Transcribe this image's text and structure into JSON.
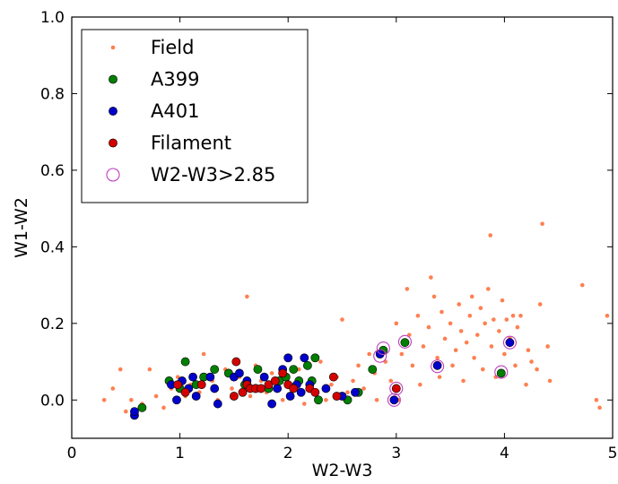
{
  "chart_data": {
    "type": "scatter",
    "xlabel": "W2-W3",
    "ylabel": "W1-W2",
    "xlim": [
      0,
      5
    ],
    "ylim": [
      -0.1,
      1.0
    ],
    "xticks": [
      "0",
      "1",
      "2",
      "3",
      "4",
      "5"
    ],
    "yticks": [
      "0.0",
      "0.2",
      "0.4",
      "0.6",
      "0.8",
      "1.0"
    ],
    "grid": false,
    "legend_position": "top-left",
    "series": [
      {
        "name": "Field",
        "marker": "small-dot",
        "color": "#FF7F50",
        "points": [
          [
            0.3,
            0.0
          ],
          [
            0.38,
            0.03
          ],
          [
            0.45,
            0.08
          ],
          [
            0.5,
            -0.03
          ],
          [
            0.55,
            0.0
          ],
          [
            0.65,
            -0.01
          ],
          [
            0.72,
            0.08
          ],
          [
            0.78,
            0.01
          ],
          [
            0.85,
            -0.02
          ],
          [
            0.92,
            0.03
          ],
          [
            0.98,
            0.06
          ],
          [
            1.05,
            0.01
          ],
          [
            1.1,
            0.04
          ],
          [
            1.18,
            0.02
          ],
          [
            1.22,
            0.12
          ],
          [
            1.3,
            0.05
          ],
          [
            1.35,
            0.0
          ],
          [
            1.42,
            0.08
          ],
          [
            1.48,
            0.03
          ],
          [
            1.55,
            0.06
          ],
          [
            1.62,
            0.27
          ],
          [
            1.65,
            0.01
          ],
          [
            1.7,
            0.09
          ],
          [
            1.75,
            0.05
          ],
          [
            1.8,
            0.02
          ],
          [
            1.85,
            0.07
          ],
          [
            1.9,
            0.04
          ],
          [
            1.95,
            0.0
          ],
          [
            2.0,
            0.06
          ],
          [
            2.05,
            0.03
          ],
          [
            2.1,
            0.08
          ],
          [
            2.15,
            -0.01
          ],
          [
            2.2,
            0.05
          ],
          [
            2.25,
            0.02
          ],
          [
            2.3,
            0.1
          ],
          [
            2.35,
            0.0
          ],
          [
            2.4,
            0.04
          ],
          [
            2.45,
            0.06
          ],
          [
            2.5,
            0.21
          ],
          [
            2.55,
            0.02
          ],
          [
            2.6,
            0.05
          ],
          [
            2.65,
            0.09
          ],
          [
            2.7,
            0.03
          ],
          [
            2.75,
            0.12
          ],
          [
            2.8,
            0.07
          ],
          [
            2.82,
            0.0
          ],
          [
            2.9,
            0.1
          ],
          [
            2.95,
            0.05
          ],
          [
            3.0,
            0.2
          ],
          [
            3.02,
            0.0
          ],
          [
            3.05,
            0.12
          ],
          [
            3.1,
            0.29
          ],
          [
            3.12,
            0.17
          ],
          [
            3.15,
            0.09
          ],
          [
            3.2,
            0.22
          ],
          [
            3.22,
            0.04
          ],
          [
            3.25,
            0.14
          ],
          [
            3.3,
            0.19
          ],
          [
            3.32,
            0.32
          ],
          [
            3.35,
            0.27
          ],
          [
            3.38,
            0.11
          ],
          [
            3.4,
            0.06
          ],
          [
            3.42,
            0.23
          ],
          [
            3.45,
            0.16
          ],
          [
            3.5,
            0.2
          ],
          [
            3.52,
            0.09
          ],
          [
            3.55,
            0.13
          ],
          [
            3.58,
            0.25
          ],
          [
            3.6,
            0.18
          ],
          [
            3.62,
            0.05
          ],
          [
            3.65,
            0.15
          ],
          [
            3.68,
            0.22
          ],
          [
            3.7,
            0.27
          ],
          [
            3.72,
            0.11
          ],
          [
            3.75,
            0.17
          ],
          [
            3.78,
            0.24
          ],
          [
            3.8,
            0.08
          ],
          [
            3.82,
            0.2
          ],
          [
            3.85,
            0.29
          ],
          [
            3.87,
            0.43
          ],
          [
            3.88,
            0.14
          ],
          [
            3.9,
            0.21
          ],
          [
            3.92,
            0.06
          ],
          [
            3.95,
            0.18
          ],
          [
            3.98,
            0.26
          ],
          [
            4.0,
            0.12
          ],
          [
            4.02,
            0.21
          ],
          [
            4.05,
            0.16
          ],
          [
            4.08,
            0.22
          ],
          [
            4.1,
            0.09
          ],
          [
            4.12,
            0.19
          ],
          [
            4.15,
            0.22
          ],
          [
            4.2,
            0.04
          ],
          [
            4.22,
            0.13
          ],
          [
            4.25,
            0.1
          ],
          [
            4.3,
            0.08
          ],
          [
            4.33,
            0.25
          ],
          [
            4.35,
            0.46
          ],
          [
            4.4,
            0.14
          ],
          [
            4.42,
            0.05
          ],
          [
            4.72,
            0.3
          ],
          [
            4.85,
            0.0
          ],
          [
            4.88,
            -0.02
          ],
          [
            4.95,
            0.22
          ]
        ]
      },
      {
        "name": "A399",
        "marker": "circle",
        "color": "#007F00",
        "points": [
          [
            0.65,
            -0.02
          ],
          [
            0.9,
            0.05
          ],
          [
            1.0,
            0.03
          ],
          [
            1.05,
            0.1
          ],
          [
            1.15,
            0.04
          ],
          [
            1.22,
            0.06
          ],
          [
            1.32,
            0.08
          ],
          [
            1.45,
            0.07
          ],
          [
            1.6,
            0.04
          ],
          [
            1.72,
            0.08
          ],
          [
            1.82,
            0.03
          ],
          [
            1.92,
            0.05
          ],
          [
            1.98,
            0.06
          ],
          [
            2.05,
            0.08
          ],
          [
            2.1,
            0.05
          ],
          [
            2.18,
            0.09
          ],
          [
            2.22,
            0.05
          ],
          [
            2.25,
            0.11
          ],
          [
            2.28,
            0.0
          ],
          [
            2.55,
            0.0
          ],
          [
            2.65,
            0.02
          ],
          [
            2.78,
            0.08
          ],
          [
            2.88,
            0.13
          ],
          [
            3.08,
            0.15
          ],
          [
            3.97,
            0.07
          ]
        ]
      },
      {
        "name": "A401",
        "marker": "circle",
        "color": "#0000CC",
        "points": [
          [
            0.58,
            -0.04
          ],
          [
            0.58,
            -0.03
          ],
          [
            0.92,
            0.04
          ],
          [
            0.97,
            0.0
          ],
          [
            1.02,
            0.05
          ],
          [
            1.08,
            0.03
          ],
          [
            1.12,
            0.06
          ],
          [
            1.15,
            0.01
          ],
          [
            1.28,
            0.06
          ],
          [
            1.32,
            0.03
          ],
          [
            1.35,
            -0.01
          ],
          [
            1.5,
            0.06
          ],
          [
            1.55,
            0.07
          ],
          [
            1.62,
            0.05
          ],
          [
            1.7,
            0.03
          ],
          [
            1.78,
            0.06
          ],
          [
            1.85,
            -0.01
          ],
          [
            1.9,
            0.03
          ],
          [
            1.95,
            0.08
          ],
          [
            2.0,
            0.11
          ],
          [
            2.02,
            0.01
          ],
          [
            2.08,
            0.04
          ],
          [
            2.12,
            0.02
          ],
          [
            2.15,
            0.11
          ],
          [
            2.2,
            0.04
          ],
          [
            2.35,
            0.03
          ],
          [
            2.5,
            0.01
          ],
          [
            2.62,
            0.02
          ],
          [
            2.85,
            0.12
          ],
          [
            2.98,
            0.0
          ],
          [
            3.38,
            0.09
          ],
          [
            4.05,
            0.15
          ]
        ]
      },
      {
        "name": "Filament",
        "marker": "circle",
        "color": "#D40000",
        "points": [
          [
            0.98,
            0.04
          ],
          [
            1.05,
            0.02
          ],
          [
            1.2,
            0.04
          ],
          [
            1.5,
            0.01
          ],
          [
            1.52,
            0.1
          ],
          [
            1.58,
            0.02
          ],
          [
            1.62,
            0.04
          ],
          [
            1.65,
            0.03
          ],
          [
            1.7,
            0.03
          ],
          [
            1.75,
            0.03
          ],
          [
            1.82,
            0.04
          ],
          [
            1.88,
            0.05
          ],
          [
            1.95,
            0.07
          ],
          [
            2.0,
            0.04
          ],
          [
            2.05,
            0.03
          ],
          [
            2.2,
            0.03
          ],
          [
            2.25,
            0.02
          ],
          [
            2.42,
            0.06
          ],
          [
            2.45,
            0.01
          ],
          [
            3.0,
            0.03
          ]
        ]
      },
      {
        "name": "W2-W3>2.85",
        "marker": "open-circle",
        "color": "#BF3FBF",
        "points": [
          [
            2.88,
            0.135
          ],
          [
            2.85,
            0.115
          ],
          [
            3.08,
            0.152
          ],
          [
            3.38,
            0.088
          ],
          [
            4.05,
            0.15
          ],
          [
            3.97,
            0.073
          ],
          [
            2.98,
            0.0
          ],
          [
            3.0,
            0.03
          ]
        ]
      }
    ]
  }
}
